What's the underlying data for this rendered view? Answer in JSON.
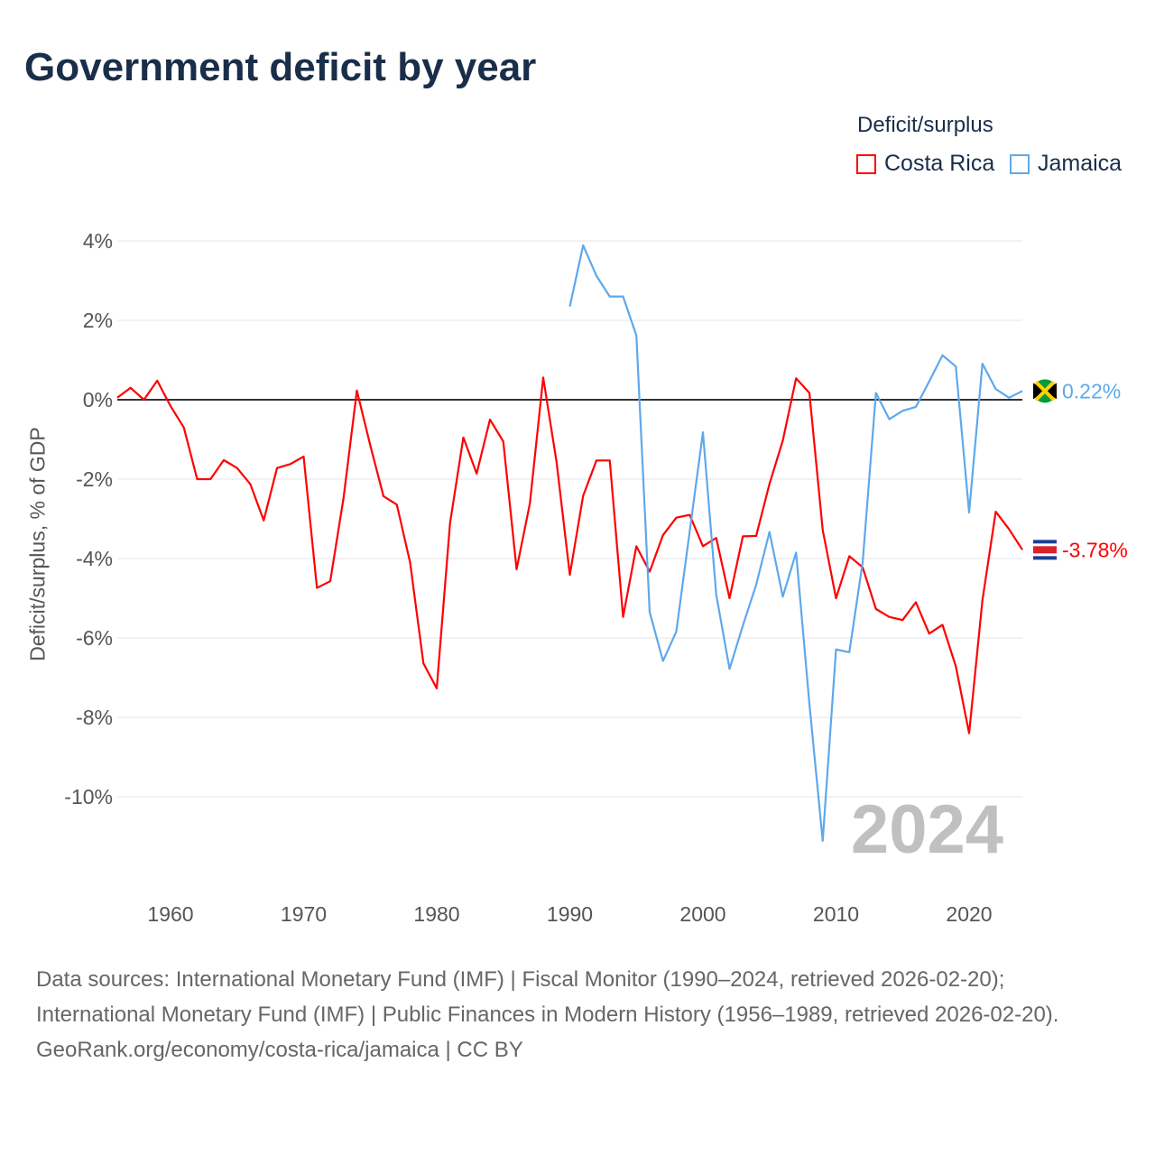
{
  "title": "Government deficit by year",
  "legend": {
    "title": "Deficit/surplus",
    "items": [
      {
        "name": "Costa Rica",
        "color": "#ff0000"
      },
      {
        "name": "Jamaica",
        "color": "#5ea8ec"
      }
    ]
  },
  "chart_data": {
    "type": "line",
    "title": "Government deficit by year",
    "xlabel": "",
    "ylabel": "Deficit/surplus, % of GDP",
    "xlim": [
      1956,
      2024
    ],
    "ylim": [
      -11.3,
      4.4
    ],
    "x_ticks": [
      1960,
      1970,
      1980,
      1990,
      2000,
      2010,
      2020
    ],
    "y_ticks": [
      4,
      2,
      0,
      -2,
      -4,
      -6,
      -8,
      -10
    ],
    "y_tick_labels": [
      "4%",
      "2%",
      "0%",
      "-2%",
      "-4%",
      "-6%",
      "-8%",
      "-10%"
    ],
    "grid": true,
    "year_watermark": "2024",
    "series": [
      {
        "name": "Costa Rica",
        "color": "#ff0000",
        "start_year": 1956,
        "end_label": "-3.78%",
        "values": [
          0.05,
          0.3,
          0.0,
          0.48,
          -0.16,
          -0.7,
          -2.0,
          -2.0,
          -1.52,
          -1.72,
          -2.13,
          -3.04,
          -1.72,
          -1.62,
          -1.43,
          -4.74,
          -4.57,
          -2.47,
          0.23,
          -1.14,
          -2.43,
          -2.64,
          -4.1,
          -6.64,
          -7.27,
          -3.11,
          -0.95,
          -1.86,
          -0.5,
          -1.05,
          -4.27,
          -2.61,
          0.56,
          -1.56,
          -4.41,
          -2.42,
          -1.53,
          -1.53,
          -5.47,
          -3.69,
          -4.33,
          -3.41,
          -2.97,
          -2.9,
          -3.69,
          -3.48,
          -5.0,
          -3.44,
          -3.43,
          -2.12,
          -1.03,
          0.54,
          0.17,
          -3.28,
          -5.0,
          -3.94,
          -4.22,
          -5.27,
          -5.47,
          -5.55,
          -5.1,
          -5.89,
          -5.67,
          -6.71,
          -8.4,
          -5.05,
          -2.82,
          -3.26,
          -3.78
        ]
      },
      {
        "name": "Jamaica",
        "color": "#5ea8ec",
        "start_year": 1990,
        "end_label": "0.22%",
        "values": [
          2.35,
          3.89,
          3.12,
          2.6,
          2.6,
          1.62,
          -5.35,
          -6.58,
          -5.84,
          -3.33,
          -0.82,
          -4.91,
          -6.78,
          -5.69,
          -4.66,
          -3.33,
          -4.96,
          -3.85,
          -7.66,
          -11.11,
          -6.29,
          -6.36,
          -4.1,
          0.17,
          -0.49,
          -0.28,
          -0.18,
          0.46,
          1.12,
          0.84,
          -2.84,
          0.91,
          0.27,
          0.05,
          0.22
        ]
      }
    ]
  },
  "footer": {
    "sources": "Data sources: International Monetary Fund (IMF) | Fiscal Monitor (1990–2024, retrieved 2026-02-20); International Monetary Fund (IMF) | Public Finances in Modern History (1956–1989, retrieved 2026-02-20).",
    "attribution": "GeoRank.org/economy/costa-rica/jamaica | CC BY"
  }
}
